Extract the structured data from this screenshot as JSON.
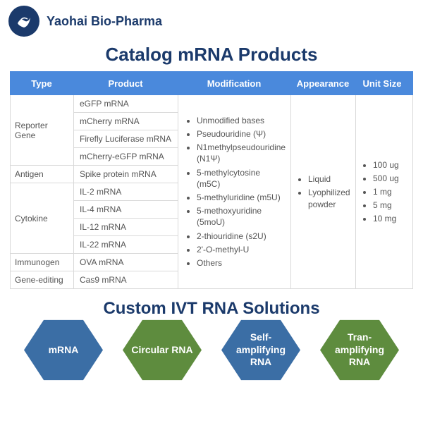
{
  "colors": {
    "brand_dark": "#1b3a6b",
    "header_blue": "#4a89dc",
    "text_gray": "#555555",
    "border": "#d9d9d9",
    "hex_blue": "#3b6ea5",
    "hex_green": "#5e8c3e"
  },
  "company": "Yaohai Bio-Pharma",
  "title": "Catalog mRNA Products",
  "columns": {
    "type": "Type",
    "product": "Product",
    "modification": "Modification",
    "appearance": "Appearance",
    "unit_size": "Unit Size"
  },
  "groups": [
    {
      "type": "Reporter Gene",
      "products": [
        "eGFP mRNA",
        "mCherry mRNA",
        "Firefly Luciferase mRNA",
        "mCherry-eGFP mRNA"
      ]
    },
    {
      "type": "Antigen",
      "products": [
        "Spike protein mRNA"
      ]
    },
    {
      "type": "Cytokine",
      "products": [
        "IL-2 mRNA",
        "IL-4 mRNA",
        "IL-12 mRNA",
        "IL-22 mRNA"
      ]
    },
    {
      "type": "Immunogen",
      "products": [
        "OVA mRNA"
      ]
    },
    {
      "type": "Gene-editing",
      "products": [
        "Cas9 mRNA"
      ]
    }
  ],
  "modifications": [
    "Unmodified bases",
    "Pseudouridine (Ψ)",
    "N1methylpseudouridine (N1Ψ)",
    "5-methylcytosine (m5C)",
    "5-methyluridine (m5U)",
    "5-methoxyuridine (5moU)",
    "2-thiouridine (s2U)",
    "2'-O-methyl-U",
    "Others"
  ],
  "appearance": [
    "Liquid",
    "Lyophilized powder"
  ],
  "unit_sizes": [
    "100 ug",
    "500 ug",
    "1 mg",
    "5 mg",
    "10 mg"
  ],
  "subtitle": "Custom IVT RNA Solutions",
  "hexes": [
    {
      "label": "mRNA",
      "color": "#3b6ea5"
    },
    {
      "label": "Circular RNA",
      "color": "#5e8c3e"
    },
    {
      "label": "Self-amplifying RNA",
      "color": "#3b6ea5"
    },
    {
      "label": "Tran-amplifying RNA",
      "color": "#5e8c3e"
    }
  ]
}
